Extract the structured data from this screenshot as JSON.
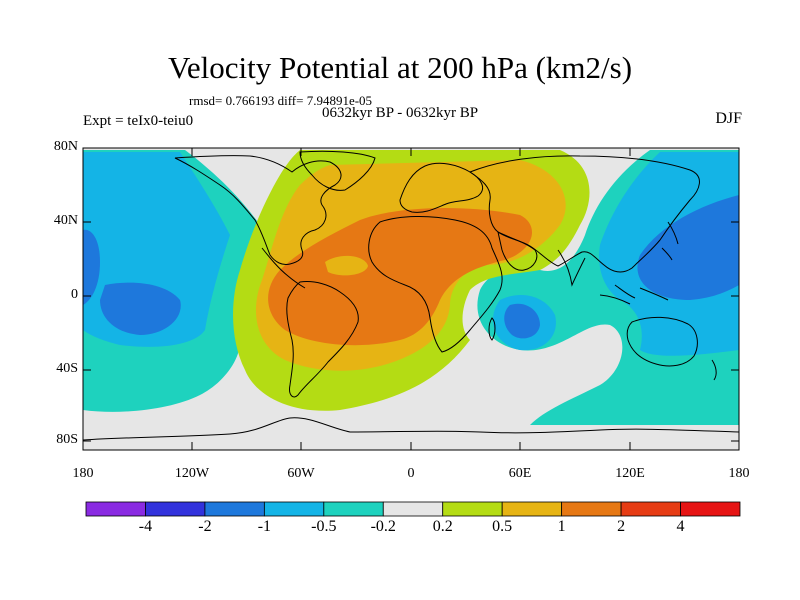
{
  "title": "Velocity Potential at 200 hPa (km2/s)",
  "stats": "rmsd= 0.766193 diff= 7.94891e-05",
  "experiment": "Expt = teIx0-teiu0",
  "period": "0632kyr BP - 0632kyr BP",
  "season": "DJF",
  "lat_ticks": [
    "80N",
    "40N",
    "0",
    "40S",
    "80S"
  ],
  "lon_ticks": [
    "180",
    "120W",
    "60W",
    "0",
    "60E",
    "120E",
    "180"
  ],
  "colorbar": {
    "labels": [
      "-4",
      "-2",
      "-1",
      "-0.5",
      "-0.2",
      "0.2",
      "0.5",
      "1",
      "2",
      "4"
    ],
    "colors": [
      "#8a2be2",
      "#3232dc",
      "#1e78dc",
      "#14b4e6",
      "#1ed2be",
      "#e6e6e6",
      "#b4dc14",
      "#e6b414",
      "#e67814",
      "#e63c14",
      "#e61414"
    ]
  }
}
